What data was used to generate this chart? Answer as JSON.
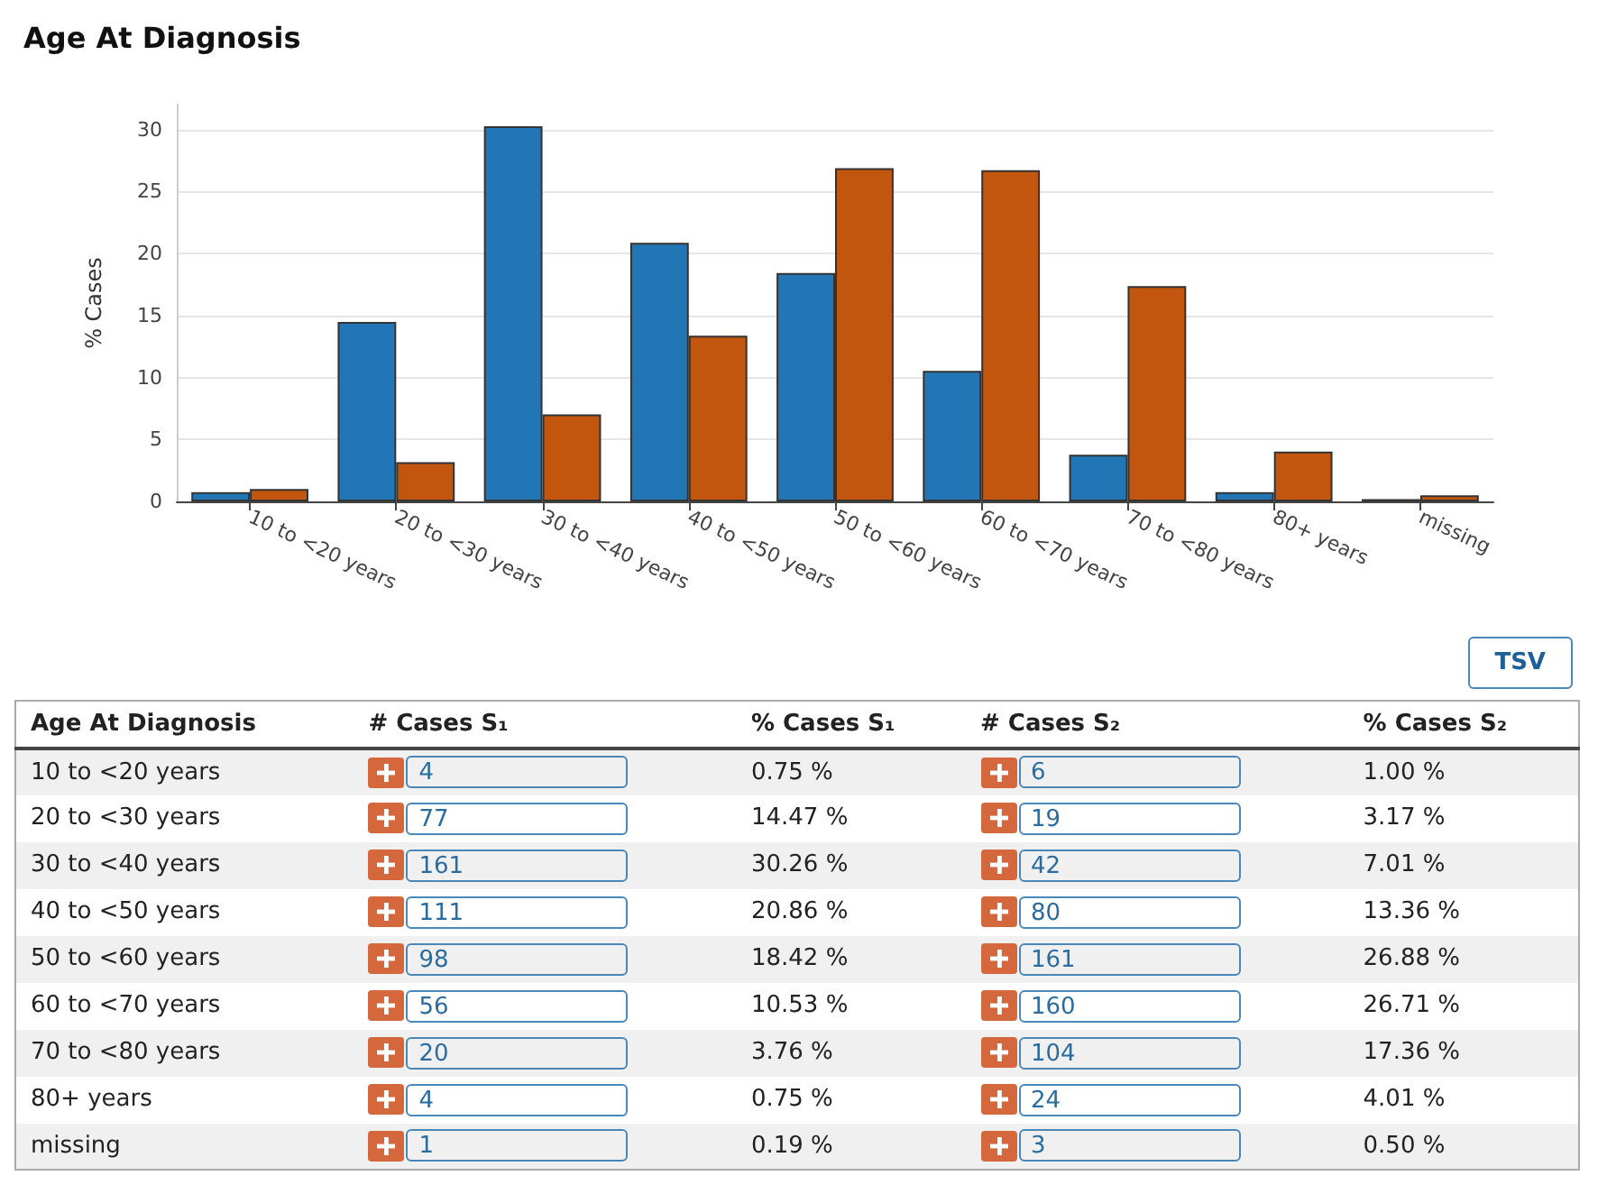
{
  "chart_data": [
    {
      "type": "bar",
      "title": "Age At Diagnosis",
      "ylabel": "% Cases",
      "categories": [
        "10 to <20 years",
        "20 to <30 years",
        "30 to <40 years",
        "40 to <50 years",
        "50 to <60 years",
        "60 to <70 years",
        "70 to <80 years",
        "80+ years",
        "missing"
      ],
      "series": [
        {
          "name": "% Cases S₁",
          "color": "#2276b6",
          "values": [
            0.75,
            14.47,
            30.26,
            20.86,
            18.42,
            10.53,
            3.76,
            0.75,
            0.19
          ],
          "value_labels": [
            "0.75 %",
            "14.47 %",
            "30.26 %",
            "20.86 %",
            "18.42 %",
            "10.53 %",
            "3.76 %",
            "0.75 %",
            "0.19 %"
          ]
        },
        {
          "name": "% Cases S₂",
          "color": "#c2560f",
          "values": [
            1.0,
            3.17,
            7.01,
            13.36,
            26.88,
            26.71,
            17.36,
            4.01,
            0.5
          ],
          "value_labels": [
            "1.00 %",
            "3.17 %",
            "7.01 %",
            "13.36 %",
            "26.88 %",
            "26.71 %",
            "17.36 %",
            "4.01 %",
            "0.50 %"
          ]
        }
      ],
      "ylim": [
        0,
        32
      ],
      "yticks": [
        0,
        5,
        10,
        15,
        20,
        25,
        30
      ],
      "grid": "y"
    },
    {
      "type": "other",
      "xlabel": "Age At Diagnosis",
      "categories": [
        "10 to <20 years",
        "20 to <30 years",
        "30 to <40 years",
        "40 to <50 years",
        "50 to <60 years",
        "60 to <70 years",
        "70 to <80 years",
        "80+ years",
        "missing"
      ],
      "series": [
        {
          "name": "# Cases S₁",
          "values": [
            4,
            77,
            161,
            111,
            98,
            56,
            20,
            4,
            1
          ]
        },
        {
          "name": "# Cases S₂",
          "values": [
            6,
            19,
            42,
            80,
            161,
            160,
            104,
            24,
            3
          ]
        }
      ],
      "data_labels": true,
      "annotations": [
        "TSV"
      ]
    }
  ]
}
